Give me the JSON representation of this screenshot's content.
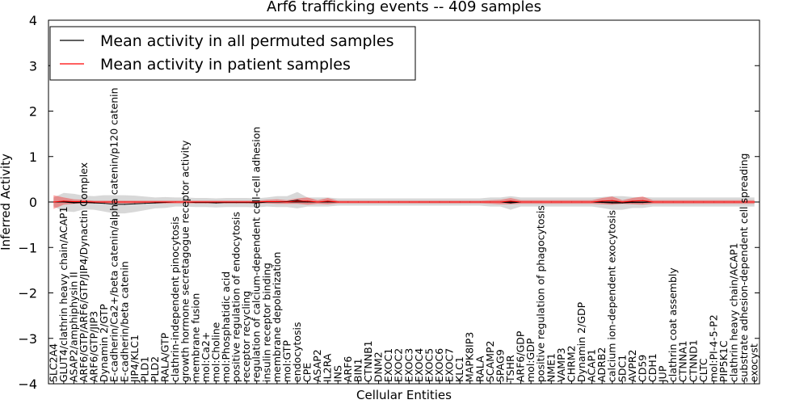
{
  "chart_data": {
    "type": "line",
    "title": "Arf6 trafficking events -- 409 samples",
    "xlabel": "Cellular Entities",
    "ylabel": "Inferred Activity",
    "ylim": [
      -4,
      4
    ],
    "yticks": [
      -4,
      -3,
      -2,
      -1,
      0,
      1,
      2,
      3,
      4
    ],
    "grid": false,
    "legend_position": "top-left",
    "categories": [
      "SLC2A4",
      "GLUT4/clathrin heavy chain/ACAP1",
      "ASAP2/amphiphysin II",
      "ARF6/GTP/ARF6/GTP/JIP4/Dynactin Complex",
      "ARF6/GTP/JIP3",
      "Dynamin 2/GTP",
      "E-cadherin/Ca2+/beta catenin/alpha catenin/p120 catenin",
      "E-cadherin/beta catenin",
      "JIP4/KLC1",
      "PLD1",
      "PLD2",
      "RALA/GTP",
      "clathrin-independent pinocytosis",
      "growth hormone secretagogue receptor activity",
      "membrane fusion",
      "mol:Ca2+",
      "mol:Choline",
      "mol:Phosphatidic acid",
      "positive regulation of endocytosis",
      "receptor recycling",
      "regulation of calcium-dependent cell-cell adhesion",
      "insulin receptor binding",
      "membrane depolarization",
      "mol:GTP",
      "endocytosis",
      "CPE",
      "ASAP2",
      "IL2RA",
      "INS",
      "ARF6",
      "BIN1",
      "CTNNB1",
      "DNM2",
      "EXOC1",
      "EXOC2",
      "EXOC3",
      "EXOC4",
      "EXOC5",
      "EXOC6",
      "EXOC7",
      "KLC1",
      "MAPK8IP3",
      "RALA",
      "SCAMP2",
      "SPAG9",
      "TSHR",
      "ARF6/GDP",
      "mol:GDP",
      "positive regulation of phagocytosis",
      "NME1",
      "VAMP3",
      "CHRM2",
      "Dynamin 2/GDP",
      "ACAP1",
      "ADRB2",
      "calcium ion-dependent exocytosis",
      "SDC1",
      "AVPR2",
      "CD59",
      "CDH1",
      "JUP",
      "clathrin coat assembly",
      "CTNNA1",
      "CTNND1",
      "CLTC",
      "mol:PI-4-5-P2",
      "PIP5K1C",
      "clathrin heavy chain/ACAP1",
      "substrate adhesion-dependent cell spreading",
      "exocyst"
    ],
    "series": [
      {
        "name": "Mean activity in all permuted samples",
        "color": "#000000",
        "values": [
          0.0,
          0.0,
          -0.02,
          -0.01,
          -0.02,
          -0.03,
          -0.05,
          -0.05,
          -0.04,
          -0.03,
          -0.02,
          -0.01,
          0.0,
          0.0,
          -0.01,
          -0.01,
          -0.02,
          -0.01,
          -0.01,
          -0.01,
          -0.02,
          0.0,
          0.01,
          0.01,
          0.04,
          0.0,
          0.0,
          0.0,
          0.0,
          0.0,
          0.0,
          0.0,
          0.0,
          0.0,
          0.0,
          0.0,
          0.0,
          0.0,
          0.0,
          0.0,
          0.0,
          0.0,
          0.0,
          0.0,
          0.0,
          -0.02,
          0.0,
          0.0,
          0.0,
          0.0,
          0.0,
          0.0,
          0.0,
          0.0,
          -0.01,
          -0.02,
          -0.02,
          -0.01,
          -0.01,
          0.0,
          0.0,
          0.0,
          0.0,
          0.0,
          0.0,
          0.0,
          0.0,
          0.0,
          0.0,
          0.0
        ],
        "band": [
          0.1,
          0.2,
          0.2,
          0.15,
          0.15,
          0.18,
          0.2,
          0.2,
          0.18,
          0.15,
          0.12,
          0.12,
          0.1,
          0.1,
          0.1,
          0.1,
          0.1,
          0.1,
          0.1,
          0.1,
          0.1,
          0.1,
          0.12,
          0.12,
          0.18,
          0.1,
          0.1,
          0.1,
          0.08,
          0.08,
          0.08,
          0.08,
          0.08,
          0.08,
          0.08,
          0.08,
          0.08,
          0.08,
          0.08,
          0.08,
          0.08,
          0.08,
          0.08,
          0.1,
          0.1,
          0.15,
          0.1,
          0.1,
          0.1,
          0.1,
          0.1,
          0.1,
          0.1,
          0.1,
          0.12,
          0.15,
          0.15,
          0.12,
          0.12,
          0.1,
          0.1,
          0.1,
          0.1,
          0.1,
          0.1,
          0.1,
          0.1,
          0.1,
          0.1,
          0.1
        ]
      },
      {
        "name": "Mean activity in patient samples",
        "color": "#ff0000",
        "values": [
          0.0,
          0.02,
          0.01,
          0.01,
          0.0,
          0.0,
          0.0,
          0.0,
          0.0,
          0.0,
          0.0,
          0.0,
          0.0,
          0.0,
          0.0,
          0.0,
          0.0,
          0.0,
          0.0,
          0.0,
          0.0,
          0.01,
          0.01,
          0.0,
          0.02,
          0.02,
          0.0,
          0.02,
          0.0,
          0.0,
          0.0,
          0.0,
          0.0,
          0.0,
          0.0,
          0.0,
          0.0,
          0.0,
          0.0,
          0.0,
          0.0,
          0.0,
          0.0,
          0.0,
          0.0,
          0.02,
          0.0,
          0.0,
          0.0,
          0.0,
          0.0,
          0.0,
          0.0,
          0.0,
          0.02,
          0.03,
          0.0,
          0.02,
          0.03,
          0.0,
          0.0,
          0.0,
          0.0,
          0.0,
          0.0,
          0.0,
          0.0,
          0.0,
          0.0,
          0.0
        ],
        "band": [
          0.15,
          0.08,
          0.05,
          0.04,
          0.03,
          0.03,
          0.03,
          0.03,
          0.03,
          0.03,
          0.03,
          0.03,
          0.03,
          0.03,
          0.03,
          0.03,
          0.03,
          0.03,
          0.03,
          0.03,
          0.03,
          0.04,
          0.05,
          0.04,
          0.06,
          0.08,
          0.04,
          0.07,
          0.03,
          0.03,
          0.03,
          0.03,
          0.03,
          0.03,
          0.03,
          0.03,
          0.03,
          0.03,
          0.03,
          0.03,
          0.03,
          0.03,
          0.03,
          0.04,
          0.05,
          0.07,
          0.04,
          0.04,
          0.04,
          0.04,
          0.04,
          0.04,
          0.04,
          0.04,
          0.07,
          0.09,
          0.04,
          0.07,
          0.09,
          0.04,
          0.04,
          0.04,
          0.04,
          0.04,
          0.04,
          0.04,
          0.04,
          0.04,
          0.04,
          0.04
        ]
      }
    ]
  }
}
